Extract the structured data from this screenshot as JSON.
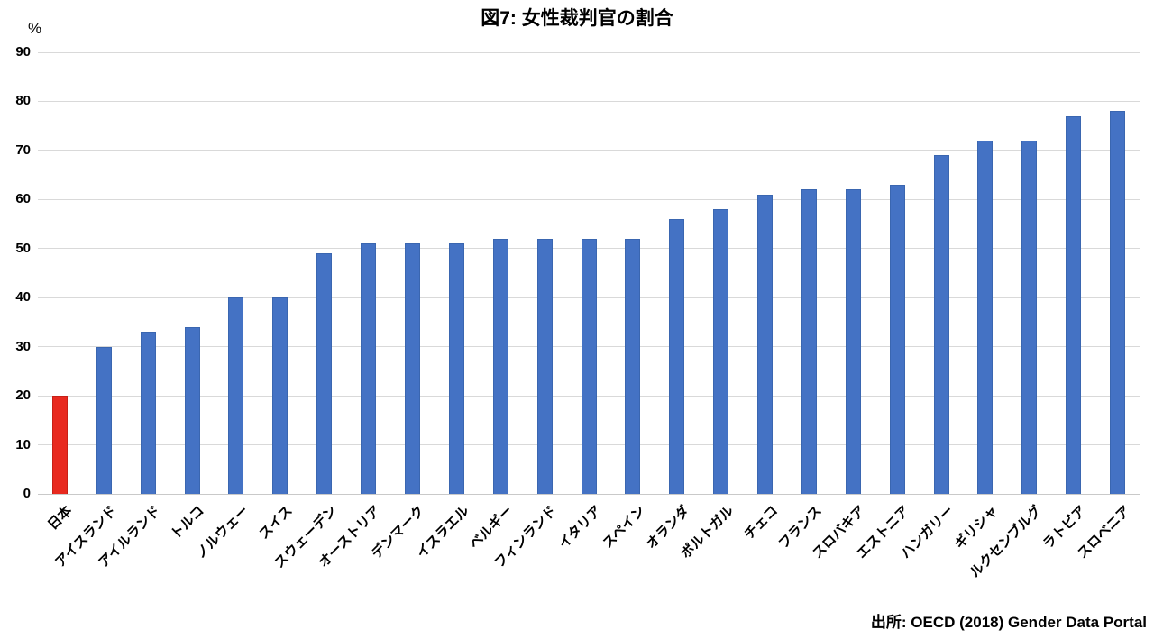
{
  "title": "図7: 女性裁判官の割合",
  "source": "出所: OECD (2018) Gender Data Portal",
  "colors": {
    "bar_default": "#4472c4",
    "bar_default_border": "#3a66b0",
    "bar_highlight": "#e8291f",
    "bar_highlight_border": "#c62017",
    "gridline": "#d9d9d9",
    "baseline": "#c9c9c9",
    "text": "#000000"
  },
  "chart_data": {
    "type": "bar",
    "title": "図7: 女性裁判官の割合",
    "xlabel": "",
    "ylabel": "%",
    "ylim": [
      0,
      90
    ],
    "y_ticks": [
      0,
      10,
      20,
      30,
      40,
      50,
      60,
      70,
      80,
      90
    ],
    "grid": true,
    "legend": false,
    "highlight_index": 0,
    "source": "出所: OECD (2018) Gender Data Portal",
    "categories": [
      "日本",
      "アイスランド",
      "アイルランド",
      "トルコ",
      "ノルウェー",
      "スイス",
      "スウェーデン",
      "オーストリア",
      "デンマーク",
      "イスラエル",
      "ベルギー",
      "フィンランド",
      "イタリア",
      "スペイン",
      "オランダ",
      "ポルトガル",
      "チェコ",
      "フランス",
      "スロバキア",
      "エストニア",
      "ハンガリー",
      "ギリシャ",
      "ルクセンブルグ",
      "ラトビア",
      "スロベニア"
    ],
    "values": [
      20,
      30,
      33,
      34,
      40,
      40,
      49,
      51,
      51,
      51,
      52,
      52,
      52,
      52,
      56,
      58,
      61,
      62,
      62,
      63,
      69,
      72,
      72,
      77,
      78
    ]
  }
}
